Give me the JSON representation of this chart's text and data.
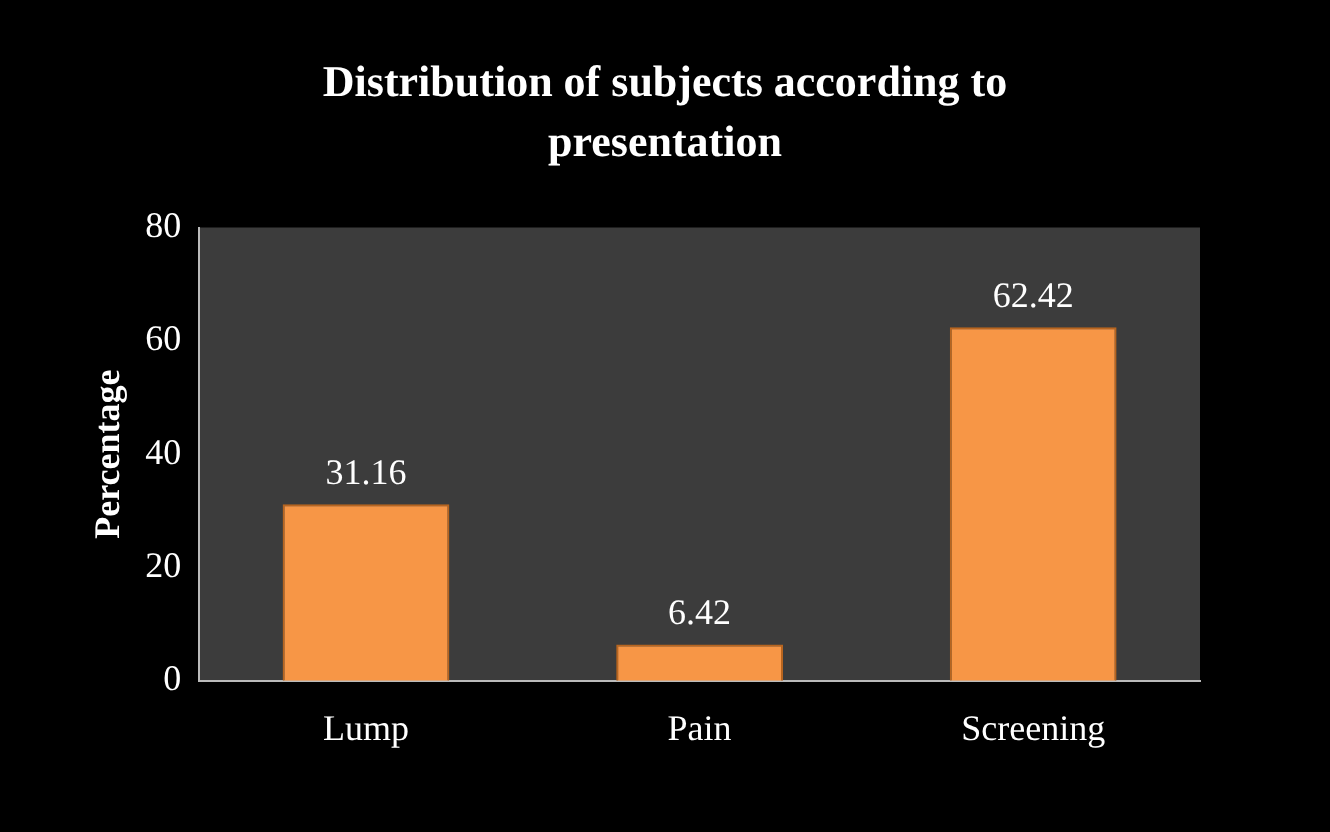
{
  "chart_data": {
    "type": "bar",
    "title": "Distribution of subjects according to presentation",
    "ylabel": "Percentage",
    "categories": [
      "Lump",
      "Pain",
      "Screening"
    ],
    "values": [
      31.16,
      6.42,
      62.42
    ],
    "color": "#f79646",
    "ylim": [
      0,
      80
    ],
    "yticks": [
      0,
      20,
      40,
      60,
      80
    ],
    "grid": false,
    "legend": false,
    "data_labels": true
  }
}
